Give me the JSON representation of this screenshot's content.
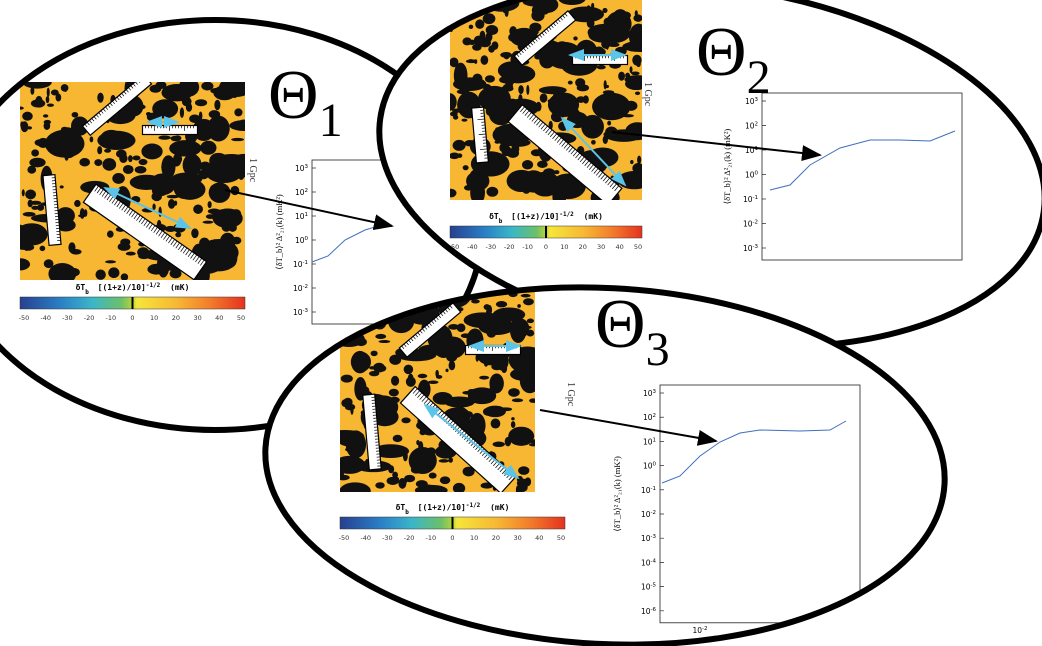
{
  "panels": [
    {
      "symbol": "Θ",
      "subscript": "1",
      "scale": "1 Gpc",
      "colorbar": {
        "symbol": "δT",
        "sub": "b",
        "factor": "[(1+z)/10]",
        "exp": "-1/2",
        "unit": "(mK)",
        "ticks": [
          "-50",
          "-40",
          "-30",
          "-20",
          "-10",
          "0",
          "10",
          "20",
          "30",
          "40",
          "50"
        ]
      },
      "plot": {
        "ylabel": "⟨δT_b⟩² Δ²₂₁(k) (mK²)",
        "yticks": [
          {
            "base": "10",
            "exp": "3"
          },
          {
            "base": "10",
            "exp": "2"
          },
          {
            "base": "10",
            "exp": "1"
          },
          {
            "base": "10",
            "exp": "0"
          },
          {
            "base": "10",
            "exp": "-1"
          },
          {
            "base": "10",
            "exp": "-2"
          },
          {
            "base": "10",
            "exp": "-3"
          }
        ]
      }
    },
    {
      "symbol": "Θ",
      "subscript": "2",
      "scale": "1 Gpc",
      "colorbar": {
        "symbol": "δT",
        "sub": "b",
        "factor": "[(1+z)/10]",
        "exp": "-1/2",
        "unit": "(mK)",
        "ticks": [
          "-50",
          "-40",
          "-30",
          "-20",
          "-10",
          "0",
          "10",
          "20",
          "30",
          "40",
          "50"
        ]
      },
      "plot": {
        "ylabel": "⟨δT_b⟩² Δ²₂₁(k) (mK²)",
        "yticks": [
          {
            "base": "10",
            "exp": "3"
          },
          {
            "base": "10",
            "exp": "2"
          },
          {
            "base": "10",
            "exp": "1"
          },
          {
            "base": "10",
            "exp": "0"
          },
          {
            "base": "10",
            "exp": "-1"
          },
          {
            "base": "10",
            "exp": "-2"
          },
          {
            "base": "10",
            "exp": "-3"
          }
        ]
      }
    },
    {
      "symbol": "Θ",
      "subscript": "3",
      "scale": "1 Gpc",
      "colorbar": {
        "symbol": "δT",
        "sub": "b",
        "factor": "[(1+z)/10]",
        "exp": "-1/2",
        "unit": "(mK)",
        "ticks": [
          "-50",
          "-40",
          "-30",
          "-20",
          "-10",
          "0",
          "10",
          "20",
          "30",
          "40",
          "50"
        ]
      },
      "plot": {
        "ylabel": "⟨δT_b⟩² Δ²₂₁(k) (mK²)",
        "yticks": [
          {
            "base": "10",
            "exp": "3"
          },
          {
            "base": "10",
            "exp": "2"
          },
          {
            "base": "10",
            "exp": "1"
          },
          {
            "base": "10",
            "exp": "0"
          },
          {
            "base": "10",
            "exp": "-1"
          },
          {
            "base": "10",
            "exp": "-2"
          },
          {
            "base": "10",
            "exp": "-3"
          },
          {
            "base": "10",
            "exp": "-4"
          },
          {
            "base": "10",
            "exp": "-5"
          },
          {
            "base": "10",
            "exp": "-6"
          }
        ],
        "xticks": [
          {
            "base": "10",
            "exp": "-2"
          }
        ]
      }
    }
  ]
}
